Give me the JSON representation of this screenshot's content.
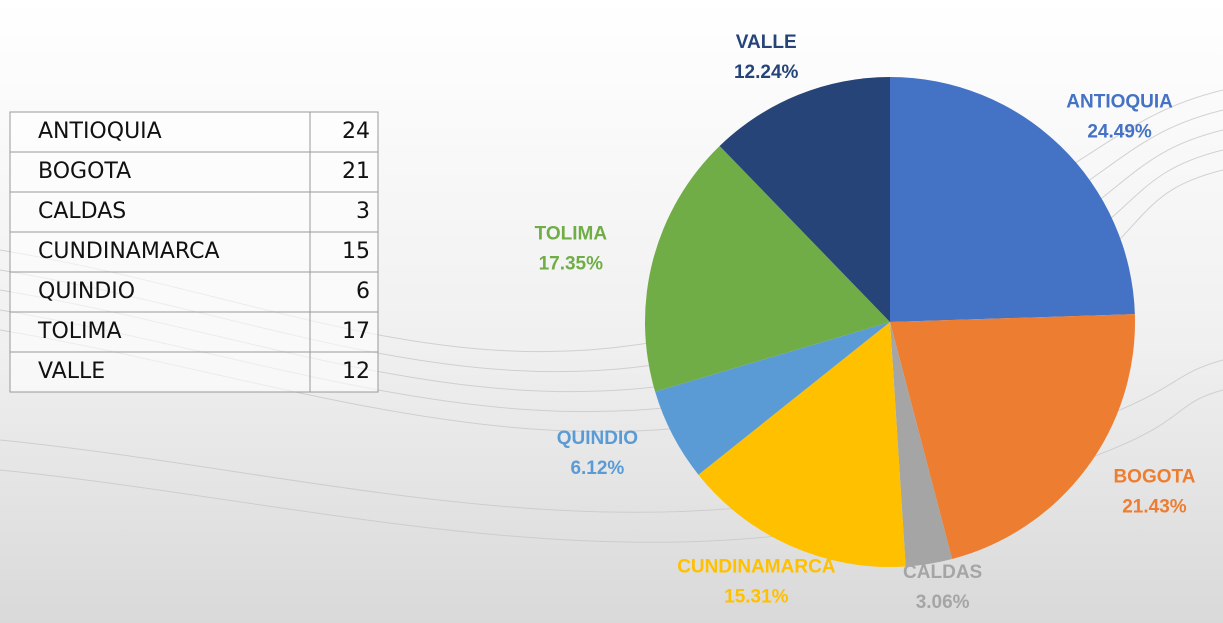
{
  "table": {
    "rows": [
      [
        "ANTIOQUIA",
        24
      ],
      [
        "BOGOTA",
        21
      ],
      [
        "CALDAS",
        3
      ],
      [
        "CUNDINAMARCA",
        15
      ],
      [
        "QUINDIO",
        6
      ],
      [
        "TOLIMA",
        17
      ],
      [
        "VALLE",
        12
      ]
    ]
  },
  "chart_data": {
    "type": "pie",
    "categories": [
      "ANTIOQUIA",
      "BOGOTA",
      "CALDAS",
      "CUNDINAMARCA",
      "QUINDIO",
      "TOLIMA",
      "VALLE"
    ],
    "values": [
      24.49,
      21.43,
      3.06,
      15.31,
      6.12,
      17.35,
      12.24
    ],
    "value_labels": [
      "24.49%",
      "21.43%",
      "3.06%",
      "15.31%",
      "6.12%",
      "17.35%",
      "12.24%"
    ],
    "colors": [
      "#4472c4",
      "#ed7d31",
      "#a5a5a5",
      "#ffc000",
      "#5b9bd5",
      "#70ad47",
      "#264478"
    ]
  }
}
